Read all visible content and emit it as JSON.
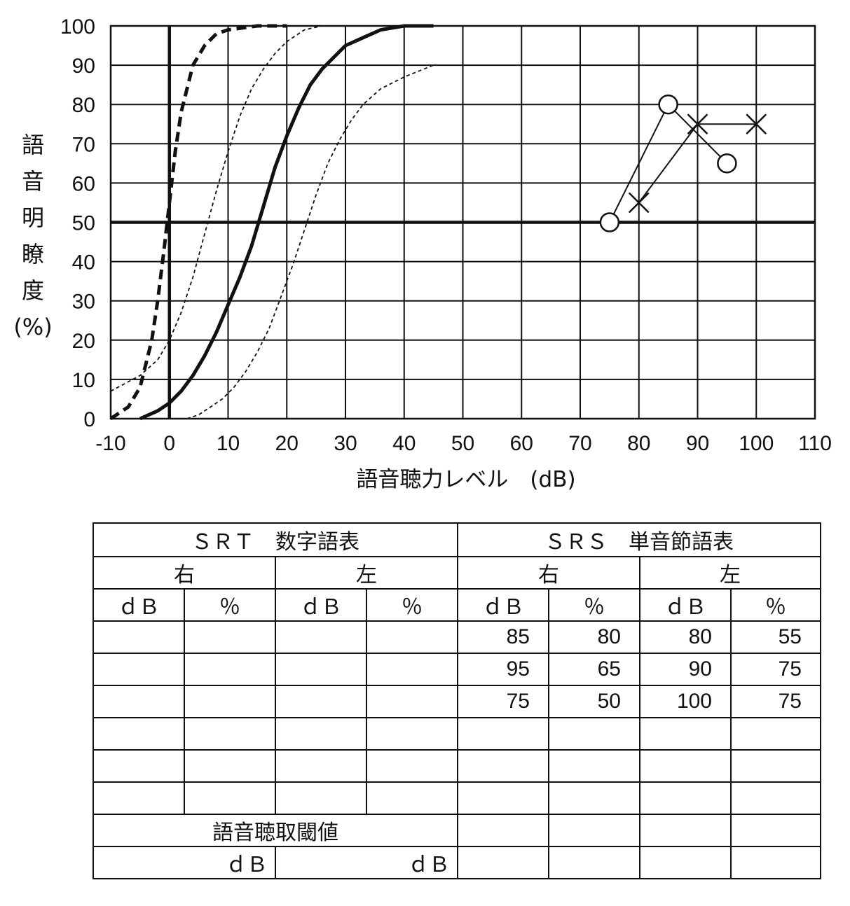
{
  "chart_data": {
    "type": "line",
    "ylabel": "語音明瞭度 (%)",
    "ylabel_chars": [
      "語",
      "音",
      "明",
      "瞭",
      "度",
      "(%)"
    ],
    "xlabel": "語音聴力レベル　(dB)",
    "xlim": [
      -10,
      110
    ],
    "ylim": [
      0,
      100
    ],
    "x_ticks": [
      -10,
      0,
      10,
      20,
      30,
      40,
      50,
      60,
      70,
      80,
      90,
      100,
      110
    ],
    "x_tick_labels": [
      "-10",
      "0",
      "10",
      "20",
      "30",
      "40",
      "50",
      "60",
      "70",
      "80",
      "90",
      "100",
      "110"
    ],
    "y_ticks": [
      0,
      10,
      20,
      30,
      40,
      50,
      60,
      70,
      80,
      90,
      100
    ],
    "y_tick_labels": [
      "0",
      "10",
      "20",
      "30",
      "40",
      "50",
      "60",
      "70",
      "80",
      "90",
      "100"
    ],
    "grid": true,
    "reference_lines": {
      "x": 0,
      "y": 50
    },
    "series": [
      {
        "style": "bold-dashed",
        "x": [
          -10,
          -7,
          -5,
          -3,
          -2,
          -1,
          0,
          1,
          2,
          4,
          6,
          8,
          10,
          15,
          20
        ],
        "y": [
          0,
          3,
          8,
          20,
          30,
          42,
          55,
          68,
          78,
          90,
          95,
          98,
          99,
          100,
          100
        ]
      },
      {
        "style": "thin-dashed",
        "x": [
          -10,
          -5,
          -2,
          0,
          2,
          4,
          6,
          8,
          10,
          12,
          14,
          16,
          18,
          20,
          23,
          26
        ],
        "y": [
          7,
          11,
          15,
          20,
          27,
          36,
          47,
          58,
          68,
          77,
          84,
          89,
          93,
          96,
          99,
          100
        ]
      },
      {
        "style": "bold",
        "x": [
          -5,
          -2,
          0,
          2,
          4,
          6,
          8,
          10,
          12,
          14,
          16,
          18,
          20,
          22,
          24,
          26,
          28,
          30,
          33,
          36,
          40,
          45
        ],
        "y": [
          0,
          2,
          4,
          7,
          11,
          16,
          22,
          29,
          36,
          44,
          54,
          64,
          72,
          79,
          85,
          89,
          92,
          95,
          97,
          99,
          100,
          100
        ]
      },
      {
        "style": "thin-dashed",
        "x": [
          3,
          5,
          7,
          9,
          11,
          13,
          15,
          17,
          19,
          21,
          23,
          25,
          27,
          29,
          31,
          33,
          36,
          40,
          45
        ],
        "y": [
          0,
          1,
          3,
          5,
          8,
          12,
          17,
          23,
          31,
          39,
          48,
          57,
          65,
          71,
          76,
          80,
          84,
          87,
          90
        ]
      },
      {
        "marker": "circle",
        "x": [
          75,
          85,
          95
        ],
        "y": [
          50,
          80,
          65
        ]
      },
      {
        "marker": "cross",
        "x": [
          80,
          90,
          100
        ],
        "y": [
          55,
          75,
          75
        ]
      }
    ]
  },
  "table": {
    "srt_title": "ＳＲＴ　数字語表",
    "srs_title": "ＳＲＳ　単音節語表",
    "right": "右",
    "left": "左",
    "db": "ｄＢ",
    "pct": "％",
    "srs_right": [
      [
        "85",
        "80"
      ],
      [
        "95",
        "65"
      ],
      [
        "75",
        "50"
      ]
    ],
    "srs_left": [
      [
        "80",
        "55"
      ],
      [
        "90",
        "75"
      ],
      [
        "100",
        "75"
      ]
    ],
    "threshold_label": "語音聴取閾値",
    "threshold_unit_right": "ｄＢ",
    "threshold_unit_left": "ｄＢ"
  }
}
